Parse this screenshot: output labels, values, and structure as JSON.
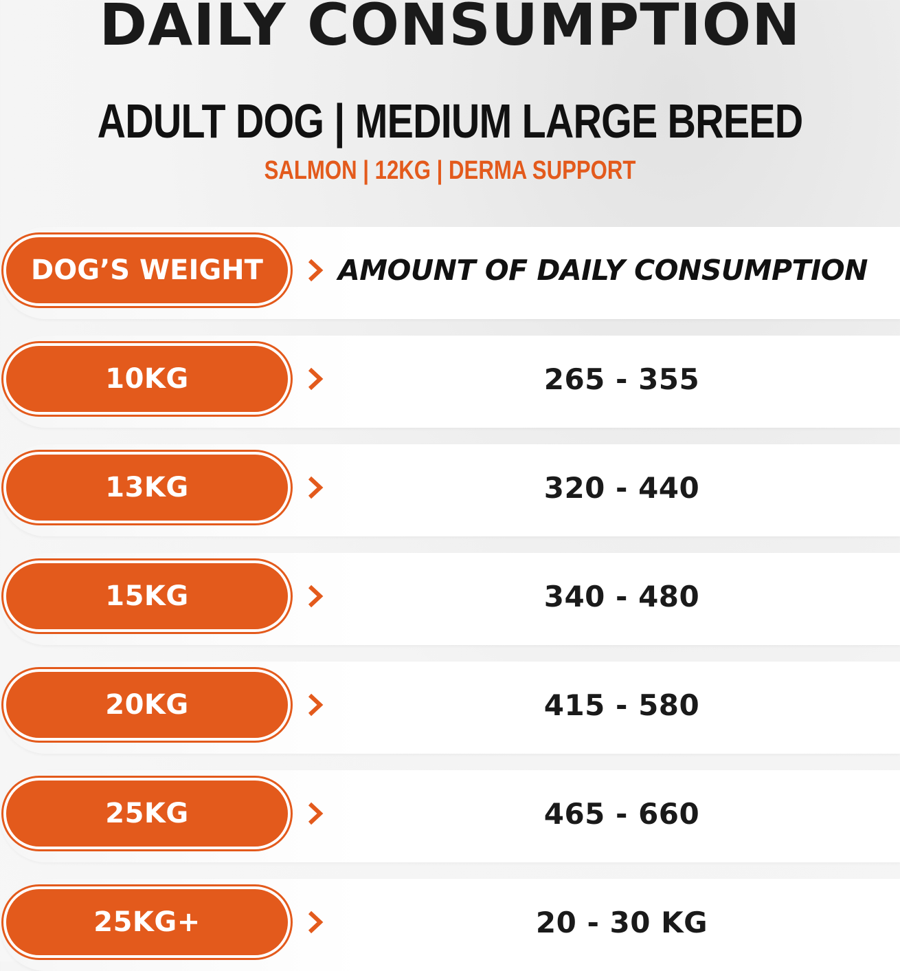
{
  "header": {
    "title": "DAILY CONSUMPTION",
    "subtitle": "ADULT DOG | MEDIUM LARGE BREED",
    "tagline": "SALMON | 12KG | DERMA SUPPORT"
  },
  "table": {
    "column_weight": "DOG’S WEIGHT",
    "column_amount": "AMOUNT OF DAILY CONSUMPTION",
    "rows": [
      {
        "weight": "10KG",
        "amount": "265 - 355"
      },
      {
        "weight": "13KG",
        "amount": "320 - 440"
      },
      {
        "weight": "15KG",
        "amount": "340 - 480"
      },
      {
        "weight": "20KG",
        "amount": "415 - 580"
      },
      {
        "weight": "25KG",
        "amount": "465 - 660"
      },
      {
        "weight": "25KG+",
        "amount": "20 - 30 KG"
      }
    ]
  },
  "colors": {
    "accent": "#e35a1c",
    "text": "#1a1a1a",
    "background": "#f4f4f4"
  },
  "icons": {
    "row_separator": "chevron-right-icon"
  }
}
